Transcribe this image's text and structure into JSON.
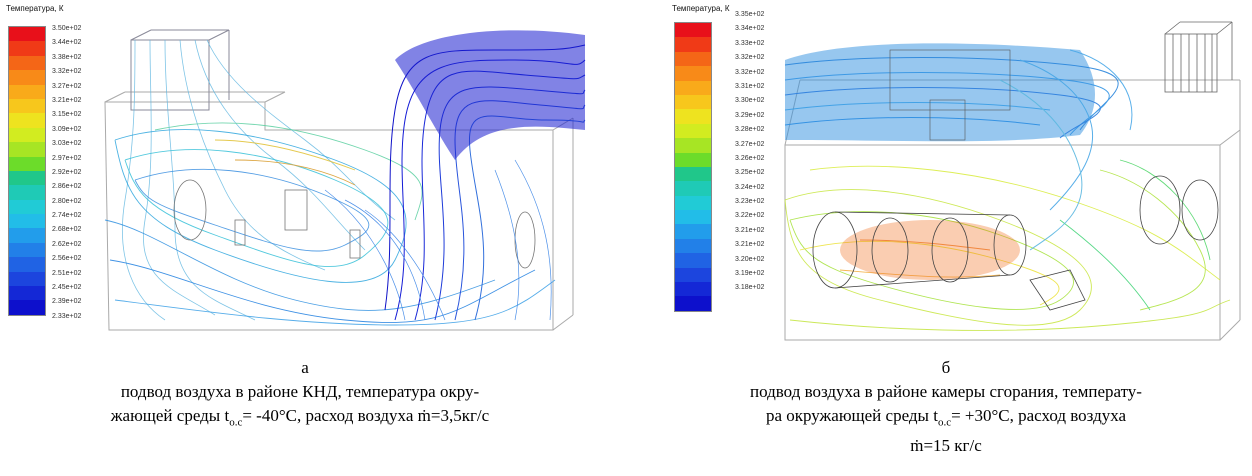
{
  "panel_a": {
    "legend_title": "Температура, К",
    "ticks": [
      "3.50e+02",
      "3.44e+02",
      "3.38e+02",
      "3.32e+02",
      "3.27e+02",
      "3.21e+02",
      "3.15e+02",
      "3.09e+02",
      "3.03e+02",
      "2.97e+02",
      "2.92e+02",
      "2.86e+02",
      "2.80e+02",
      "2.74e+02",
      "2.68e+02",
      "2.62e+02",
      "2.56e+02",
      "2.51e+02",
      "2.45e+02",
      "2.39e+02",
      "2.33e+02"
    ],
    "letter": "а",
    "caption_line1": "подвод воздуха в районе КНД, температура окру-",
    "caption_line2": "жающей среды t",
    "caption_sub": "о.с",
    "caption_line2b": "= -40°С, расход воздуха ṁ=3,5кг/с"
  },
  "panel_b": {
    "legend_title": "Температура, К",
    "ticks": [
      "3.35e+02",
      "3.34e+02",
      "3.33e+02",
      "3.32e+02",
      "3.32e+02",
      "3.31e+02",
      "3.30e+02",
      "3.29e+02",
      "3.28e+02",
      "3.27e+02",
      "3.26e+02",
      "3.25e+02",
      "3.24e+02",
      "3.23e+02",
      "3.22e+02",
      "3.21e+02",
      "3.21e+02",
      "3.20e+02",
      "3.19e+02",
      "3.18e+02"
    ],
    "letter": "б",
    "caption_line1": "подвод воздуха в районе камеры сгорания, температу-",
    "caption_line2": "ра окружающей среды t",
    "caption_sub": "о.с",
    "caption_line2b": "= +30°С, расход воздуха",
    "caption_line3": "ṁ=15 кг/с"
  },
  "colors": [
    "#e8101a",
    "#f03a17",
    "#f46617",
    "#f88a18",
    "#f9aa1a",
    "#f7c71c",
    "#eee31f",
    "#d2ec20",
    "#a7e524",
    "#6cdc2a",
    "#22c83a",
    "#20c78a",
    "#1fcab6",
    "#21cbd6",
    "#22bde8",
    "#229deb",
    "#2280e8",
    "#2063e4",
    "#1c45de",
    "#1428d6",
    "#0d10cc"
  ]
}
